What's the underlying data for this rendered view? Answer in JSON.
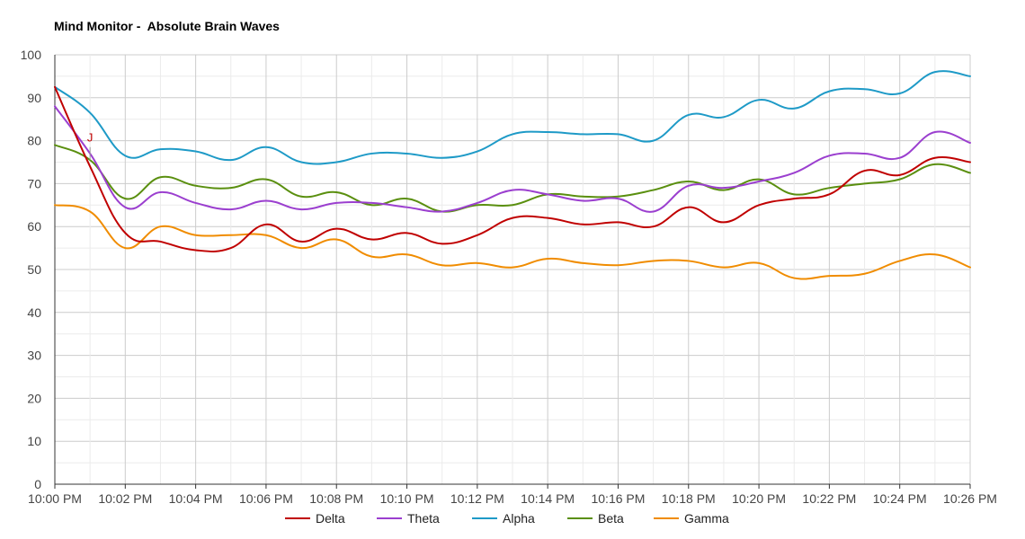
{
  "chart_data": {
    "type": "line",
    "title": "Mind Monitor -  Absolute Brain Waves",
    "xlabel": "",
    "ylabel": "",
    "ylim": [
      0,
      100
    ],
    "yticks": [
      0,
      10,
      20,
      30,
      40,
      50,
      60,
      70,
      80,
      90,
      100
    ],
    "xlim_minutes": [
      0,
      26
    ],
    "x_ticks": [
      {
        "minute": 0,
        "label": "10:00 PM"
      },
      {
        "minute": 2,
        "label": "10:02 PM"
      },
      {
        "minute": 4,
        "label": "10:04 PM"
      },
      {
        "minute": 6,
        "label": "10:06 PM"
      },
      {
        "minute": 8,
        "label": "10:08 PM"
      },
      {
        "minute": 10,
        "label": "10:10 PM"
      },
      {
        "minute": 12,
        "label": "10:12 PM"
      },
      {
        "minute": 14,
        "label": "10:14 PM"
      },
      {
        "minute": 16,
        "label": "10:16 PM"
      },
      {
        "minute": 18,
        "label": "10:18 PM"
      },
      {
        "minute": 20,
        "label": "10:20 PM"
      },
      {
        "minute": 22,
        "label": "10:22 PM"
      },
      {
        "minute": 24,
        "label": "10:24 PM"
      },
      {
        "minute": 26,
        "label": "10:26 PM"
      }
    ],
    "grid": true,
    "legend_position": "bottom",
    "x": [
      0,
      1,
      2,
      3,
      4,
      5,
      6,
      7,
      8,
      9,
      10,
      11,
      12,
      13,
      14,
      15,
      16,
      17,
      18,
      19,
      20,
      21,
      22,
      23,
      24,
      25,
      26
    ],
    "series": [
      {
        "name": "Delta",
        "color": "#c00000",
        "values": [
          92.5,
          74,
          58.5,
          56.5,
          54.5,
          55,
          60.5,
          56.5,
          59.5,
          57,
          58.5,
          56,
          58,
          62,
          62,
          60.5,
          61,
          60,
          64.5,
          61,
          65,
          66.5,
          67.5,
          73,
          72,
          76,
          75
        ]
      },
      {
        "name": "Theta",
        "color": "#9b3fcf",
        "values": [
          88,
          77,
          64.5,
          68,
          65.5,
          64,
          66,
          64,
          65.5,
          65.5,
          64.5,
          63.5,
          65.5,
          68.5,
          67.5,
          66,
          66.5,
          63.5,
          69.5,
          69,
          70.5,
          72.5,
          76.5,
          77,
          76,
          82,
          79.5
        ]
      },
      {
        "name": "Alpha",
        "color": "#1e9ac7",
        "values": [
          92.5,
          86.5,
          76.5,
          78,
          77.5,
          75.5,
          78.5,
          75,
          75,
          77,
          77,
          76,
          77.5,
          81.5,
          82,
          81.5,
          81.5,
          80,
          86,
          85.5,
          89.5,
          87.5,
          91.5,
          92,
          91,
          96,
          95
        ]
      },
      {
        "name": "Beta",
        "color": "#5a8f0f",
        "values": [
          79,
          75.5,
          66.5,
          71.5,
          69.5,
          69,
          71,
          67,
          68,
          65,
          66.5,
          63.5,
          65,
          65,
          67.5,
          67,
          67,
          68.5,
          70.5,
          68.5,
          71,
          67.5,
          69,
          70,
          71,
          74.5,
          72.5
        ]
      },
      {
        "name": "Gamma",
        "color": "#f08c00",
        "values": [
          65,
          63.5,
          55,
          60,
          58,
          58,
          58,
          55,
          57,
          53,
          53.5,
          51,
          51.5,
          50.5,
          52.5,
          51.5,
          51,
          52,
          52,
          50.5,
          51.5,
          48,
          48.5,
          49,
          52,
          53.5,
          50.5
        ]
      }
    ],
    "annotations": [
      {
        "text": "J",
        "series": "Delta",
        "x": 1,
        "y": 74
      }
    ]
  }
}
